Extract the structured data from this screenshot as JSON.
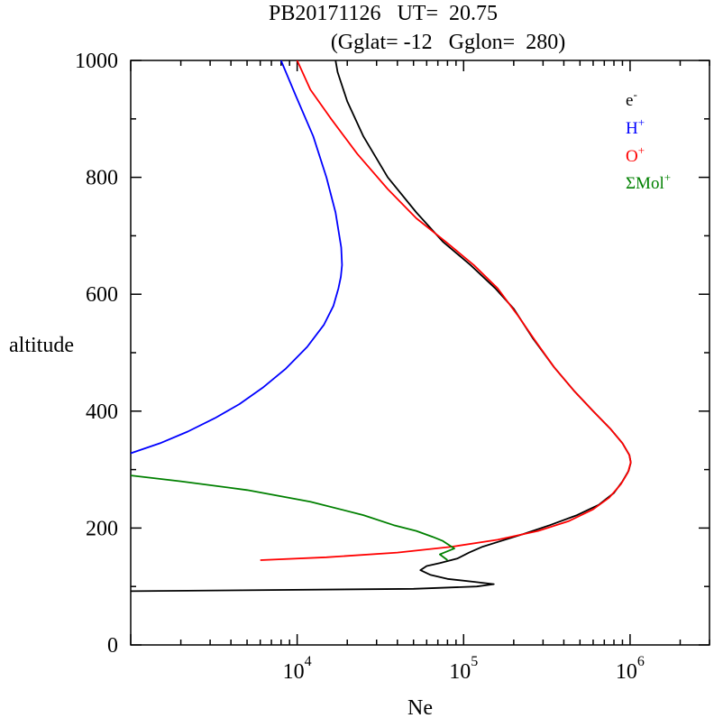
{
  "chart_data": {
    "type": "line",
    "title": "PB20171126   UT=  20.75",
    "subtitle": "(Gglat= -12   Gglon=  280)",
    "xlabel": "Ne",
    "ylabel": "altitude",
    "x_scale": "log",
    "xlim": [
      1000,
      3000000
    ],
    "ylim": [
      0,
      1000
    ],
    "y_ticks": [
      0,
      200,
      400,
      600,
      800,
      1000
    ],
    "x_ticks": [
      {
        "value": 10000,
        "base": "10",
        "exp": "4"
      },
      {
        "value": 100000,
        "base": "10",
        "exp": "5"
      },
      {
        "value": 1000000,
        "base": "10",
        "exp": "6"
      }
    ],
    "legend_position": "top-right",
    "series": [
      {
        "name": "e",
        "sup": "-",
        "color": "#000000",
        "points": [
          [
            1000,
            92
          ],
          [
            50000,
            96
          ],
          [
            120000,
            100
          ],
          [
            152000,
            104
          ],
          [
            115000,
            108
          ],
          [
            80000,
            113
          ],
          [
            63000,
            120
          ],
          [
            55000,
            128
          ],
          [
            60000,
            135
          ],
          [
            72000,
            140
          ],
          [
            92000,
            148
          ],
          [
            108000,
            158
          ],
          [
            130000,
            168
          ],
          [
            168000,
            178
          ],
          [
            230000,
            190
          ],
          [
            330000,
            205
          ],
          [
            480000,
            222
          ],
          [
            650000,
            240
          ],
          [
            800000,
            260
          ],
          [
            900000,
            280
          ],
          [
            980000,
            298
          ],
          [
            1010000,
            312
          ],
          [
            990000,
            325
          ],
          [
            900000,
            345
          ],
          [
            760000,
            370
          ],
          [
            600000,
            400
          ],
          [
            460000,
            435
          ],
          [
            350000,
            475
          ],
          [
            260000,
            525
          ],
          [
            200000,
            575
          ],
          [
            155000,
            610
          ],
          [
            110000,
            650
          ],
          [
            75000,
            690
          ],
          [
            52000,
            740
          ],
          [
            35000,
            800
          ],
          [
            25000,
            870
          ],
          [
            20000,
            930
          ],
          [
            17500,
            980
          ],
          [
            17000,
            1000
          ]
        ]
      },
      {
        "name": "H",
        "sup": "+",
        "color": "#0000ff",
        "points": [
          [
            1000,
            328
          ],
          [
            1500,
            345
          ],
          [
            2200,
            365
          ],
          [
            3200,
            388
          ],
          [
            4500,
            412
          ],
          [
            6200,
            440
          ],
          [
            8500,
            472
          ],
          [
            11500,
            510
          ],
          [
            14500,
            548
          ],
          [
            16500,
            580
          ],
          [
            17700,
            610
          ],
          [
            18300,
            630
          ],
          [
            18600,
            650
          ],
          [
            18400,
            680
          ],
          [
            17000,
            740
          ],
          [
            15000,
            800
          ],
          [
            12500,
            870
          ],
          [
            9800,
            940
          ],
          [
            8000,
            1000
          ]
        ]
      },
      {
        "name": "O",
        "sup": "+",
        "color": "#ff0000",
        "points": [
          [
            6000,
            145
          ],
          [
            15000,
            150
          ],
          [
            40000,
            158
          ],
          [
            85000,
            168
          ],
          [
            160000,
            180
          ],
          [
            280000,
            195
          ],
          [
            430000,
            212
          ],
          [
            600000,
            232
          ],
          [
            750000,
            252
          ],
          [
            880000,
            275
          ],
          [
            970000,
            295
          ],
          [
            1010000,
            312
          ],
          [
            990000,
            325
          ],
          [
            900000,
            345
          ],
          [
            760000,
            370
          ],
          [
            600000,
            400
          ],
          [
            460000,
            435
          ],
          [
            350000,
            475
          ],
          [
            270000,
            520
          ],
          [
            210000,
            565
          ],
          [
            160000,
            610
          ],
          [
            115000,
            650
          ],
          [
            78000,
            690
          ],
          [
            52000,
            730
          ],
          [
            35000,
            780
          ],
          [
            23000,
            840
          ],
          [
            16000,
            900
          ],
          [
            12000,
            950
          ],
          [
            10000,
            1000
          ]
        ]
      },
      {
        "name": "ΣMol",
        "sup": "+",
        "color": "#008000",
        "points": [
          [
            1000,
            290
          ],
          [
            2000,
            280
          ],
          [
            5000,
            265
          ],
          [
            12000,
            245
          ],
          [
            25000,
            222
          ],
          [
            38000,
            205
          ],
          [
            52000,
            195
          ],
          [
            65000,
            185
          ],
          [
            75000,
            178
          ],
          [
            88000,
            165
          ],
          [
            72000,
            155
          ],
          [
            80000,
            145
          ]
        ]
      }
    ]
  }
}
